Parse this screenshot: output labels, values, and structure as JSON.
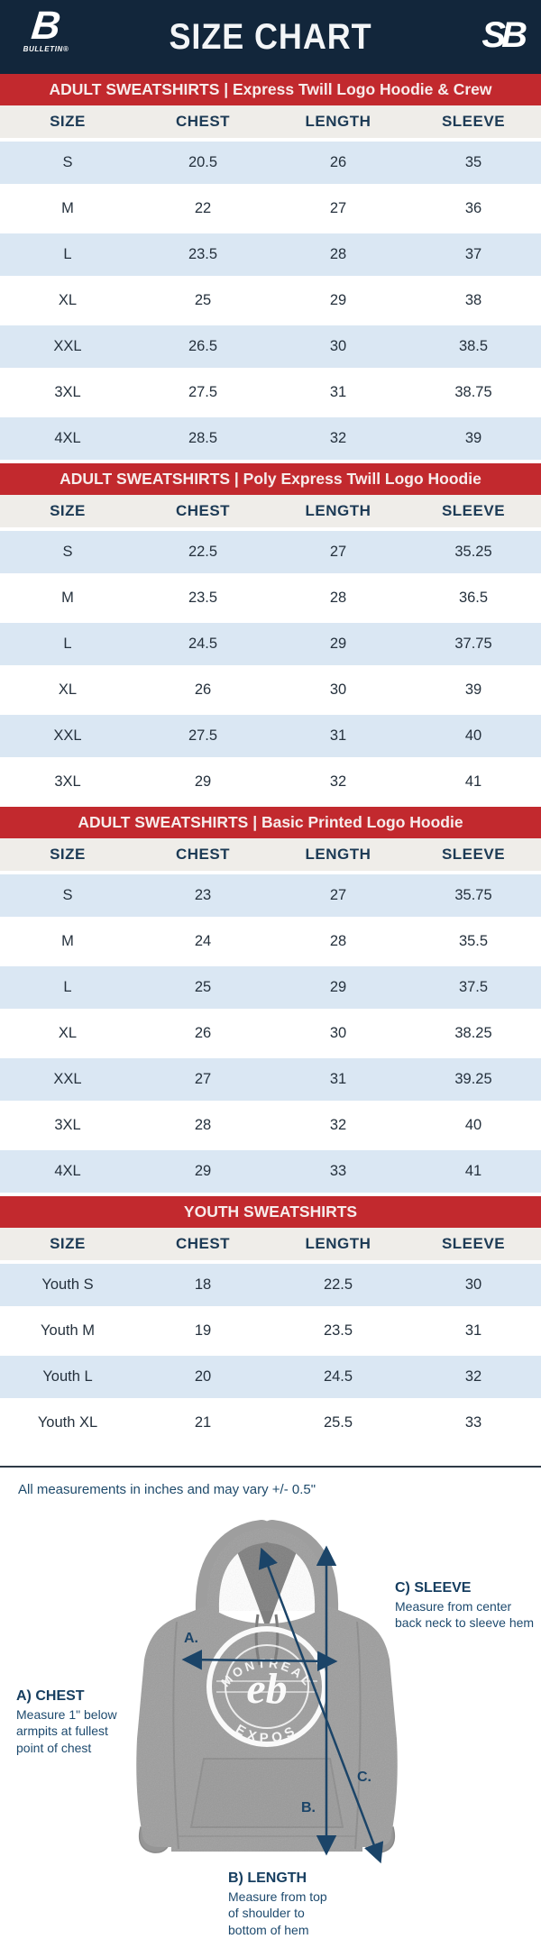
{
  "header": {
    "title": "SIZE CHART",
    "left_logo_mark": "B",
    "left_logo_text": "BULLETIN®",
    "right_logo_mark": "SB"
  },
  "columns": [
    "SIZE",
    "CHEST",
    "LENGTH",
    "SLEEVE"
  ],
  "sections": [
    {
      "banner": "ADULT SWEATSHIRTS | Express Twill Logo Hoodie & Crew",
      "rows": [
        [
          "S",
          "20.5",
          "26",
          "35"
        ],
        [
          "M",
          "22",
          "27",
          "36"
        ],
        [
          "L",
          "23.5",
          "28",
          "37"
        ],
        [
          "XL",
          "25",
          "29",
          "38"
        ],
        [
          "XXL",
          "26.5",
          "30",
          "38.5"
        ],
        [
          "3XL",
          "27.5",
          "31",
          "38.75"
        ],
        [
          "4XL",
          "28.5",
          "32",
          "39"
        ]
      ]
    },
    {
      "banner": "ADULT SWEATSHIRTS | Poly Express Twill Logo Hoodie",
      "rows": [
        [
          "S",
          "22.5",
          "27",
          "35.25"
        ],
        [
          "M",
          "23.5",
          "28",
          "36.5"
        ],
        [
          "L",
          "24.5",
          "29",
          "37.75"
        ],
        [
          "XL",
          "26",
          "30",
          "39"
        ],
        [
          "XXL",
          "27.5",
          "31",
          "40"
        ],
        [
          "3XL",
          "29",
          "32",
          "41"
        ]
      ]
    },
    {
      "banner": "ADULT SWEATSHIRTS | Basic Printed Logo Hoodie",
      "rows": [
        [
          "S",
          "23",
          "27",
          "35.75"
        ],
        [
          "M",
          "24",
          "28",
          "35.5"
        ],
        [
          "L",
          "25",
          "29",
          "37.5"
        ],
        [
          "XL",
          "26",
          "30",
          "38.25"
        ],
        [
          "XXL",
          "27",
          "31",
          "39.25"
        ],
        [
          "3XL",
          "28",
          "32",
          "40"
        ],
        [
          "4XL",
          "29",
          "33",
          "41"
        ]
      ]
    },
    {
      "banner": "YOUTH SWEATSHIRTS",
      "rows": [
        [
          "Youth S",
          "18",
          "22.5",
          "30"
        ],
        [
          "Youth M",
          "19",
          "23.5",
          "31"
        ],
        [
          "Youth L",
          "20",
          "24.5",
          "32"
        ],
        [
          "Youth XL",
          "21",
          "25.5",
          "33"
        ]
      ]
    }
  ],
  "note": "All measurements in inches and may vary +/- 0.5\"",
  "diagram": {
    "logo_top": "MONTRÉAL",
    "logo_bottom": "EXPOS",
    "logo_center": "eb",
    "labels": {
      "a_marker": "A.",
      "b_marker": "B.",
      "c_marker": "C.",
      "chest_title": "A) CHEST",
      "chest_body": "Measure 1\" below\narmpits at fullest\npoint of chest",
      "length_title": "B) LENGTH",
      "length_body": "Measure from top\nof shoulder to\nbottom of hem",
      "sleeve_title": "C) SLEEVE",
      "sleeve_body": "Measure from center\nback neck to sleeve hem"
    }
  },
  "colors": {
    "navy_header": "#12263B",
    "banner_red": "#C2292E",
    "row_blue": "#DAE7F3",
    "header_row_bg": "#EFEDE9",
    "header_text": "#1C3A55",
    "annotation_navy": "#1B4468"
  }
}
